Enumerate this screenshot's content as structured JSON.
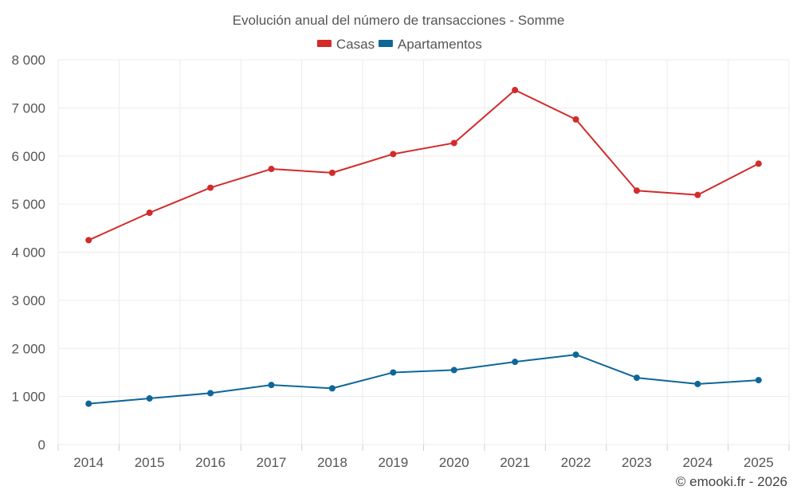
{
  "chart_data": {
    "type": "line",
    "title": "Evolución anual del número de transacciones - Somme",
    "xlabel": "",
    "ylabel": "",
    "categories": [
      "2014",
      "2015",
      "2016",
      "2017",
      "2018",
      "2019",
      "2020",
      "2021",
      "2022",
      "2023",
      "2024",
      "2025"
    ],
    "ylim": [
      0,
      8000
    ],
    "yticks": [
      0,
      1000,
      2000,
      3000,
      4000,
      5000,
      6000,
      7000,
      8000
    ],
    "ytick_labels": [
      "0",
      "1 000",
      "2 000",
      "3 000",
      "4 000",
      "5 000",
      "6 000",
      "7 000",
      "8 000"
    ],
    "grid": true,
    "legend_position": "top",
    "series": [
      {
        "name": "Casas",
        "color": "#d32a2a",
        "values": [
          4250,
          4820,
          5340,
          5730,
          5650,
          6040,
          6270,
          7370,
          6760,
          5280,
          5190,
          5840
        ]
      },
      {
        "name": "Apartamentos",
        "color": "#0e6699",
        "values": [
          850,
          960,
          1070,
          1240,
          1170,
          1500,
          1550,
          1720,
          1870,
          1390,
          1260,
          1340
        ]
      }
    ]
  },
  "credit": "© emooki.fr - 2026"
}
